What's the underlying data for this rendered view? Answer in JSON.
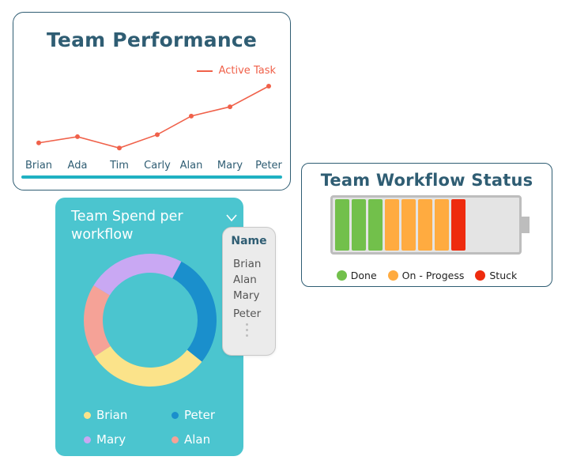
{
  "performance": {
    "title": "Team Performance",
    "legend_label": "Active Task",
    "line_color": "#f0614a",
    "names": [
      "Brian",
      "Ada",
      "Tim",
      "Carly",
      "Alan",
      "Mary",
      "Peter"
    ],
    "values": [
      27,
      33,
      22,
      35,
      53,
      62,
      82
    ]
  },
  "chart_data": {
    "type": "line",
    "title": "Team Performance",
    "categories": [
      "Brian",
      "Ada",
      "Tim",
      "Carly",
      "Alan",
      "Mary",
      "Peter"
    ],
    "series": [
      {
        "name": "Active Task",
        "values": [
          27,
          33,
          22,
          35,
          53,
          62,
          82
        ]
      }
    ],
    "grid": false,
    "legend": "top-right"
  },
  "spend": {
    "title": "Team Spend per workflow",
    "slices": [
      {
        "name": "Peter",
        "value": 28,
        "color": "#1a8fcc"
      },
      {
        "name": "Brian",
        "value": 30,
        "color": "#fbe38a"
      },
      {
        "name": "Alan",
        "value": 18,
        "color": "#f5a297"
      },
      {
        "name": "Mary",
        "value": 24,
        "color": "#c9a8f3"
      }
    ],
    "legend": [
      {
        "name": "Brian",
        "color": "#fbe38a"
      },
      {
        "name": "Peter",
        "color": "#1a8fcc"
      },
      {
        "name": "Mary",
        "color": "#c9a8f3"
      },
      {
        "name": "Alan",
        "color": "#f5a297"
      }
    ]
  },
  "name_filter": {
    "header": "Name",
    "items": [
      "Brian",
      "Alan",
      "Mary",
      "Peter"
    ]
  },
  "workflow": {
    "title": "Team Workflow Status",
    "segments": [
      "done",
      "done",
      "done",
      "progress",
      "progress",
      "progress",
      "progress",
      "stuck"
    ],
    "colors": {
      "done": "#72c04b",
      "progress": "#ffab40",
      "stuck": "#ee2b0e"
    },
    "legend": [
      {
        "label": "Done",
        "color": "#72c04b"
      },
      {
        "label": "On - Progess",
        "color": "#ffab40"
      },
      {
        "label": "Stuck",
        "color": "#ee2b0e"
      }
    ]
  }
}
